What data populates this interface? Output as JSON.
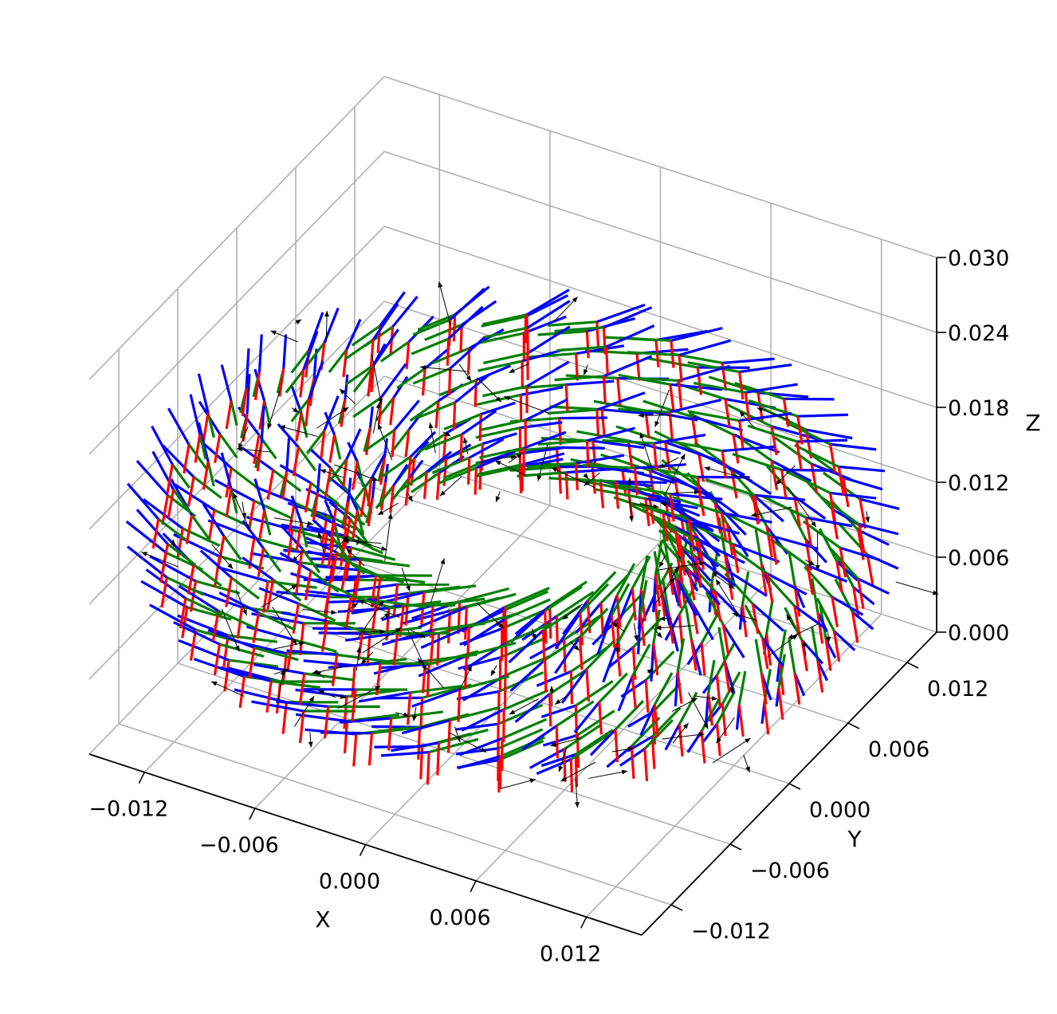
{
  "chart_data": {
    "type": "scatter",
    "projection": "3d",
    "xlabel": "X",
    "ylabel": "Y",
    "zlabel": "Z",
    "xlim": [
      -0.015,
      0.015
    ],
    "ylim": [
      -0.015,
      0.015
    ],
    "zlim": [
      0,
      0.03
    ],
    "x_ticks": [
      "−0.012",
      "−0.006",
      "0.000",
      "0.006",
      "0.012"
    ],
    "y_ticks": [
      "−0.012",
      "−0.006",
      "0.000",
      "0.006",
      "0.012"
    ],
    "z_ticks": [
      "0.000",
      "0.006",
      "0.012",
      "0.018",
      "0.024",
      "0.030"
    ],
    "grid": true,
    "frame_colors": {
      "x_axis": "#ff0000",
      "y_axis": "#008000",
      "z_axis": "#0000ff",
      "arrow": "#000000"
    },
    "series": [
      {
        "marker": "coordinate-frame-triad",
        "layout": "torus",
        "major_radius": 0.0125,
        "minor_radius": 0.0045,
        "center": [
          0,
          0,
          0.0125
        ],
        "rings": 28,
        "points_per_ring": 14,
        "triad_length": 0.0025
      },
      {
        "marker": "quiver-arrow",
        "layout": "torus",
        "major_radius": 0.0125,
        "minor_radius": 0.0045,
        "center": [
          0,
          0,
          0.0125
        ],
        "count": 150
      }
    ]
  }
}
